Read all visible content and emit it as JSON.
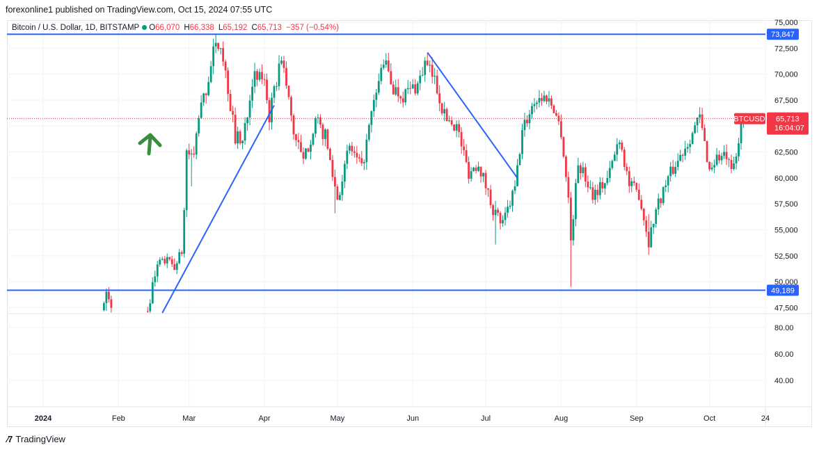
{
  "header": {
    "published": "forexonline1 published on TradingView.com, Oct 15, 2024 07:55 UTC"
  },
  "legend": {
    "symbol": "Bitcoin / U.S. Dollar, 1D, BITSTAMP",
    "open_label": "O",
    "open": "66,070",
    "high_label": "H",
    "high": "66,338",
    "low_label": "L",
    "low": "65,192",
    "close_label": "C",
    "close": "65,713",
    "change": "−357 (−0.54%)"
  },
  "price_badges": {
    "resistance": "73,847",
    "support": "49,189",
    "ticker": "BTCUSD",
    "last": "65,713",
    "countdown": "16:04:07"
  },
  "footer": {
    "brand": "TradingView"
  },
  "colors": {
    "up": "#089981",
    "down": "#f23645",
    "line": "#2962ff",
    "arrow": "#388e3c"
  },
  "chart_data": {
    "type": "candlestick",
    "price_axis": {
      "ticks": [
        "75,000",
        "72,500",
        "70,000",
        "67,500",
        "65,000",
        "62,500",
        "60,000",
        "57,500",
        "55,000",
        "52,500",
        "50,000",
        "47,500"
      ],
      "ylim": [
        47000,
        75200
      ]
    },
    "indicator_axis": {
      "ticks": [
        "80.00",
        "60.00",
        "40.00"
      ],
      "ylim": [
        20,
        90
      ]
    },
    "time_axis": {
      "ticks": [
        {
          "label": "2024",
          "date": "2024-01-01"
        },
        {
          "label": "Feb",
          "date": "2024-02-01"
        },
        {
          "label": "Mar",
          "date": "2024-03-01"
        },
        {
          "label": "Apr",
          "date": "2024-04-01"
        },
        {
          "label": "May",
          "date": "2024-05-01"
        },
        {
          "label": "Jun",
          "date": "2024-06-01"
        },
        {
          "label": "Jul",
          "date": "2024-07-01"
        },
        {
          "label": "Aug",
          "date": "2024-08-01"
        },
        {
          "label": "Sep",
          "date": "2024-09-01"
        },
        {
          "label": "Oct",
          "date": "2024-10-01"
        },
        {
          "label": "24",
          "date": "2024-10-24"
        }
      ]
    },
    "horizontal_lines": [
      {
        "price": 73847,
        "label": "73,847"
      },
      {
        "price": 49189,
        "label": "49,189"
      }
    ],
    "last_price": 65713,
    "trend_lines": [
      {
        "from": {
          "date": "2024-02-19",
          "price": 47000
        },
        "to": {
          "date": "2024-04-05",
          "price": 67000
        }
      },
      {
        "from": {
          "date": "2024-06-07",
          "price": 72100
        },
        "to": {
          "date": "2024-07-14",
          "price": 60000
        }
      }
    ],
    "price_path": [
      [
        "2024-01-26",
        47500
      ],
      [
        "2024-01-27",
        48800
      ],
      [
        "2024-01-29",
        47300
      ],
      [
        "2024-02-13",
        47300
      ],
      [
        "2024-02-15",
        49500
      ],
      [
        "2024-02-17",
        51500
      ],
      [
        "2024-02-20",
        52000
      ],
      [
        "2024-02-24",
        51500
      ],
      [
        "2024-02-27",
        52800
      ],
      [
        "2024-02-28",
        57000
      ],
      [
        "2024-02-29",
        62500
      ],
      [
        "2024-03-03",
        62000
      ],
      [
        "2024-03-05",
        66000
      ],
      [
        "2024-03-08",
        68500
      ],
      [
        "2024-03-11",
        72000
      ],
      [
        "2024-03-14",
        73200
      ],
      [
        "2024-03-17",
        68500
      ],
      [
        "2024-03-20",
        64000
      ],
      [
        "2024-03-23",
        63500
      ],
      [
        "2024-03-27",
        69500
      ],
      [
        "2024-04-01",
        69700
      ],
      [
        "2024-04-03",
        65800
      ],
      [
        "2024-04-08",
        71800
      ],
      [
        "2024-04-13",
        64500
      ],
      [
        "2024-04-17",
        61500
      ],
      [
        "2024-04-22",
        65500
      ],
      [
        "2024-04-26",
        64000
      ],
      [
        "2024-05-01",
        58000
      ],
      [
        "2024-05-06",
        63000
      ],
      [
        "2024-05-11",
        60800
      ],
      [
        "2024-05-15",
        66000
      ],
      [
        "2024-05-20",
        71400
      ],
      [
        "2024-05-24",
        68600
      ],
      [
        "2024-05-28",
        68000
      ],
      [
        "2024-06-03",
        69000
      ],
      [
        "2024-06-06",
        71000
      ],
      [
        "2024-06-10",
        69500
      ],
      [
        "2024-06-14",
        66000
      ],
      [
        "2024-06-19",
        65000
      ],
      [
        "2024-06-24",
        60500
      ],
      [
        "2024-06-28",
        61500
      ],
      [
        "2024-07-04",
        57000
      ],
      [
        "2024-07-08",
        55500
      ],
      [
        "2024-07-13",
        59000
      ],
      [
        "2024-07-16",
        64500
      ],
      [
        "2024-07-21",
        67500
      ],
      [
        "2024-07-26",
        67800
      ],
      [
        "2024-07-29",
        66800
      ],
      [
        "2024-08-01",
        64500
      ],
      [
        "2024-08-04",
        58000
      ],
      [
        "2024-08-05",
        54000
      ],
      [
        "2024-08-08",
        61500
      ],
      [
        "2024-08-14",
        58500
      ],
      [
        "2024-08-20",
        59800
      ],
      [
        "2024-08-25",
        64000
      ],
      [
        "2024-08-29",
        59300
      ],
      [
        "2024-09-02",
        58500
      ],
      [
        "2024-09-06",
        53900
      ],
      [
        "2024-09-09",
        57000
      ],
      [
        "2024-09-14",
        60000
      ],
      [
        "2024-09-18",
        61700
      ],
      [
        "2024-09-22",
        63500
      ],
      [
        "2024-09-27",
        65800
      ],
      [
        "2024-10-01",
        60800
      ],
      [
        "2024-10-04",
        62000
      ],
      [
        "2024-10-08",
        62000
      ],
      [
        "2024-10-10",
        60300
      ],
      [
        "2024-10-13",
        63000
      ],
      [
        "2024-10-14",
        66000
      ],
      [
        "2024-10-15",
        65713
      ]
    ]
  }
}
